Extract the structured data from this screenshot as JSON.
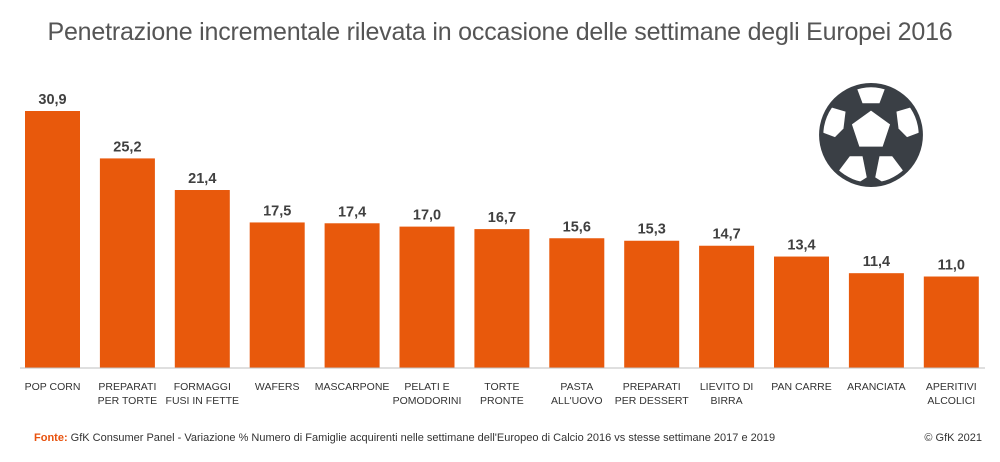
{
  "chart_data": {
    "type": "bar",
    "title": "Penetrazione incrementale rilevata in occasione delle settimane degli Europei 2016",
    "categories": [
      [
        "POP CORN"
      ],
      [
        "PREPARATI",
        "PER TORTE"
      ],
      [
        "FORMAGGI",
        "FUSI IN FETTE"
      ],
      [
        "WAFERS"
      ],
      [
        "MASCARPONE"
      ],
      [
        "PELATI E",
        "POMODORINI"
      ],
      [
        "TORTE",
        "PRONTE"
      ],
      [
        "PASTA",
        "ALL'UOVO"
      ],
      [
        "PREPARATI",
        "PER DESSERT"
      ],
      [
        "LIEVITO DI",
        "BIRRA"
      ],
      [
        "PAN CARRE"
      ],
      [
        "ARANCIATA"
      ],
      [
        "APERITIVI",
        "ALCOLICI"
      ]
    ],
    "values": [
      30.9,
      25.2,
      21.4,
      17.5,
      17.4,
      17.0,
      16.7,
      15.6,
      15.3,
      14.7,
      13.4,
      11.4,
      11.0
    ],
    "value_labels": [
      "30,9",
      "25,2",
      "21,4",
      "17,5",
      "17,4",
      "17,0",
      "16,7",
      "15,6",
      "15,3",
      "14,7",
      "13,4",
      "11,4",
      "11,0"
    ],
    "ylim": [
      0,
      30.9
    ],
    "grid": false,
    "colors": {
      "bar": "#e8590c",
      "axis": "#bfbfbf",
      "labels": "#404040"
    }
  },
  "footer": {
    "source_prefix": "Fonte:",
    "source_text": " GfK Consumer Panel - Variazione % Numero di Famiglie acquirenti nelle settimane dell'Europeo di Calcio 2016 vs stesse settimane 2017 e 2019",
    "copyright": "© GfK 2021"
  },
  "decoration": {
    "icon": "soccer-ball-icon",
    "color": "#3a3f45"
  }
}
